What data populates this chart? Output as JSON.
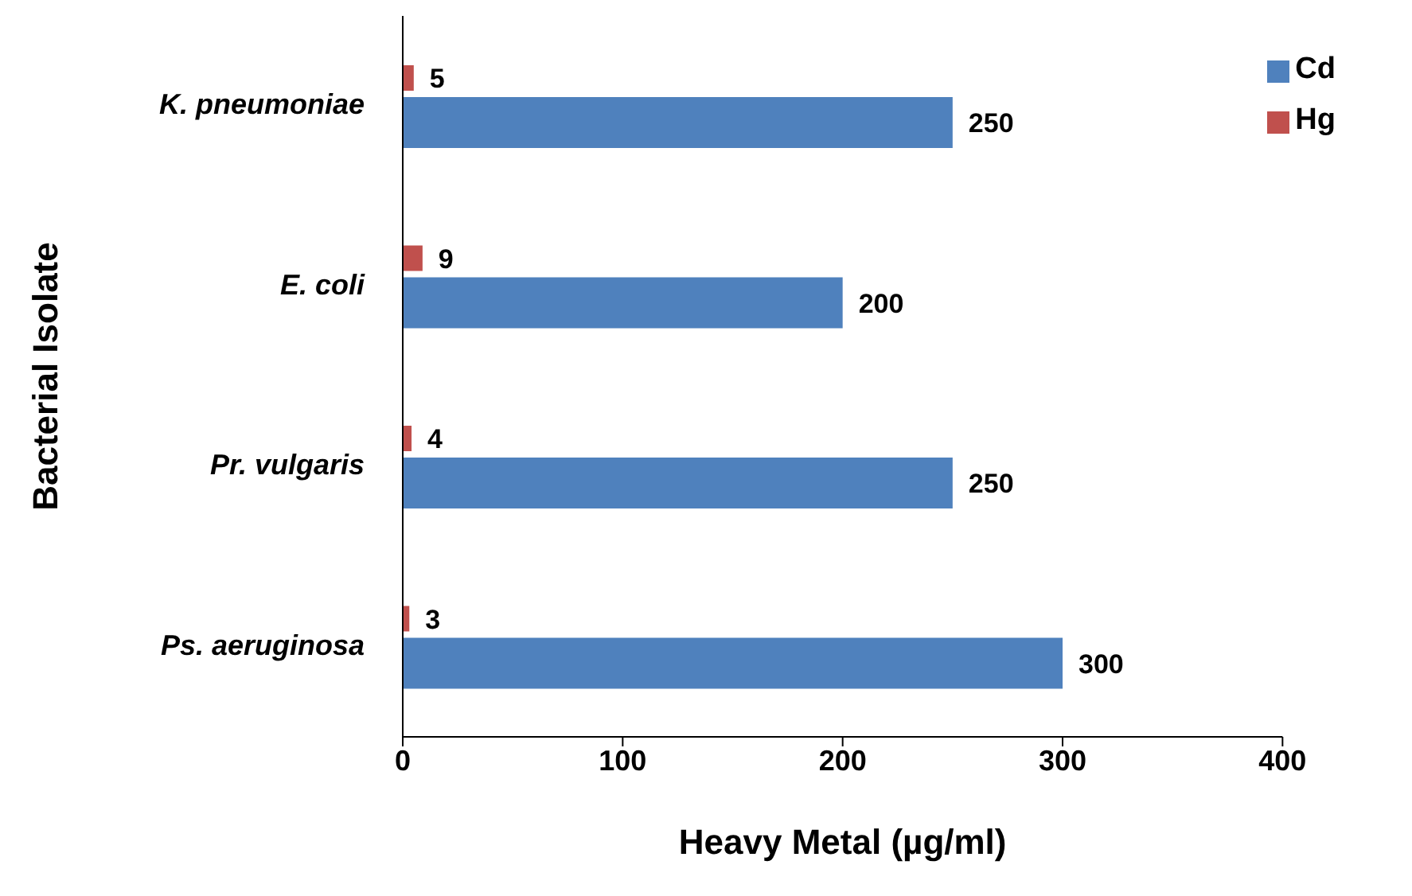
{
  "chart_data": {
    "type": "bar",
    "orientation": "horizontal",
    "xlabel": "Heavy Metal (µg/ml)",
    "ylabel": "Bacterial Isolate",
    "categories": [
      "K. pneumoniae",
      "E. coli",
      "Pr. vulgaris",
      "Ps. aeruginosa"
    ],
    "series": [
      {
        "name": "Hg",
        "color": "#c0504d",
        "values": [
          5,
          9,
          4,
          3
        ]
      },
      {
        "name": "Cd",
        "color": "#4f81bd",
        "values": [
          250,
          200,
          250,
          300
        ]
      }
    ],
    "xlim": [
      0,
      400
    ],
    "xticks": [
      0,
      100,
      200,
      300,
      400
    ],
    "data_labels": true,
    "legend": "top right",
    "grid": false
  }
}
